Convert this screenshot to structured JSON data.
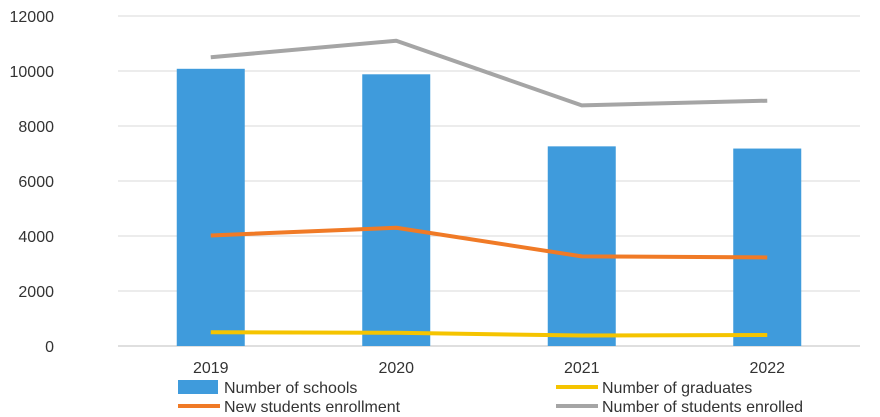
{
  "chart_data": {
    "type": "bar",
    "categories": [
      "2019",
      "2020",
      "2021",
      "2022"
    ],
    "ylim": [
      0,
      12000
    ],
    "yticks": [
      0,
      2000,
      4000,
      6000,
      8000,
      10000,
      12000
    ],
    "grid": true,
    "legend_position": "bottom",
    "series": [
      {
        "name": "Number of schools",
        "type": "bar",
        "color": "#3f9bdc",
        "values": [
          10080,
          9880,
          7260,
          7180
        ]
      },
      {
        "name": "Number of graduates",
        "type": "line",
        "color": "#f5c400",
        "values": [
          500,
          480,
          380,
          400
        ]
      },
      {
        "name": "New students enrollment",
        "type": "line",
        "color": "#f07a26",
        "values": [
          4020,
          4300,
          3260,
          3220
        ]
      },
      {
        "name": "Number of students enrolled",
        "type": "line",
        "color": "#a5a5a5",
        "values": [
          10500,
          11100,
          8750,
          8920
        ]
      }
    ]
  }
}
